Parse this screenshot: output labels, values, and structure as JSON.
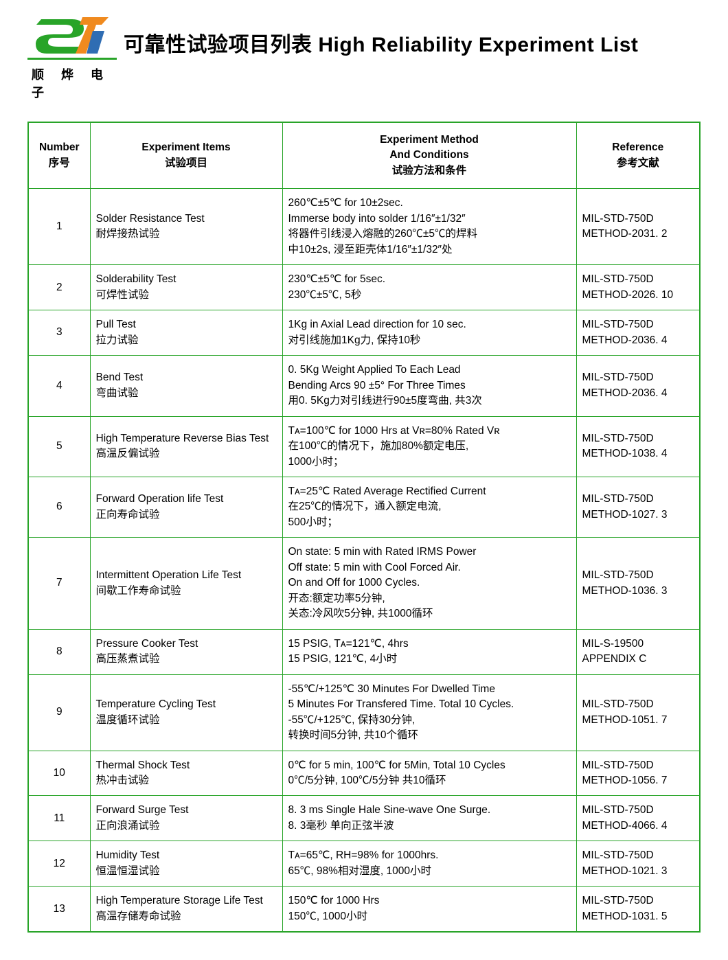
{
  "logo": {
    "company_cn": "顺 烨 电 子"
  },
  "page_title": "可靠性试验项目列表  High Reliability Experiment List",
  "colors": {
    "border": "#28a428",
    "text": "#000000",
    "bg": "#ffffff",
    "logo_orange": "#f08a1e",
    "logo_blue": "#2f6db3"
  },
  "headers": {
    "number_en": "Number",
    "number_cn": "序号",
    "items_en": "Experiment Items",
    "items_cn": "试验项目",
    "method_en": "Experiment Method",
    "method_en2": "And Conditions",
    "method_cn": "试验方法和条件",
    "ref_en": "Reference",
    "ref_cn": "参考文献"
  },
  "rows": [
    {
      "num": "1",
      "item_en": "Solder  Resistance Test",
      "item_cn": "耐焊接热试验",
      "method": "260℃±5℃ for 10±2sec.\nImmerse body into solder 1/16″±1/32″\n将器件引线浸入熔融的260℃±5℃的焊料\n中10±2s, 浸至距壳体1/16″±1/32″处",
      "ref": "MIL-STD-750D\nMETHOD-2031. 2"
    },
    {
      "num": "2",
      "item_en": "Solderability Test",
      "item_cn": "可焊性试验",
      "method": "230℃±5℃ for 5sec.\n230℃±5℃, 5秒",
      "ref": "MIL-STD-750D\nMETHOD-2026. 10"
    },
    {
      "num": "3",
      "item_en": "Pull Test",
      "item_cn": "拉力试验",
      "method": "1Kg in Axial Lead direction for 10 sec.\n对引线施加1Kg力, 保持10秒",
      "ref": "MIL-STD-750D\nMETHOD-2036. 4"
    },
    {
      "num": "4",
      "item_en": "Bend  Test",
      "item_cn": "弯曲试验",
      "method": "0. 5Kg Weight Applied To Each Lead\nBending Arcs 90 ±5°  For Three Times\n用0. 5Kg力对引线进行90±5度弯曲, 共3次",
      "ref": "MIL-STD-750D\nMETHOD-2036. 4"
    },
    {
      "num": "5",
      "item_en": "High Temperature Reverse Bias Test",
      "item_cn": "高温反偏试验",
      "method": "Tᴀ=100℃ for 1000 Hrs at Vʀ=80% Rated Vʀ\n在100℃的情况下，施加80%额定电压,\n1000小时；",
      "ref": "MIL-STD-750D\nMETHOD-1038. 4"
    },
    {
      "num": "6",
      "item_en": "Forward Operation life Test",
      "item_cn": "正向寿命试验",
      "method": "Tᴀ=25℃ Rated Average Rectified Current\n在25℃的情况下，通入额定电流,\n500小时；",
      "ref": "MIL-STD-750D\nMETHOD-1027. 3"
    },
    {
      "num": "7",
      "item_en": "Intermittent  Operation Life Test",
      "item_cn": "间歇工作寿命试验",
      "method": "On state: 5 min with Rated IRMS Power\nOff state: 5 min with Cool Forced Air.\nOn and Off for 1000 Cycles.\n开态:额定功率5分钟,\n关态:冷风吹5分钟, 共1000循环",
      "ref": "MIL-STD-750D\nMETHOD-1036. 3"
    },
    {
      "num": "8",
      "item_en": "Pressure  Cooker Test",
      "item_cn": "高压蒸煮试验",
      "method": "15 PSIG, Tᴀ=121℃, 4hrs\n15 PSIG, 121℃, 4小时",
      "ref": "MIL-S-19500\nAPPENDIX C"
    },
    {
      "num": "9",
      "item_en": "Temperature Cycling Test",
      "item_cn": "温度循环试验",
      "method": "-55℃/+125℃ 30 Minutes For Dwelled Time\n5 Minutes For Transfered Time.  Total 10 Cycles.\n-55℃/+125℃, 保持30分钟,\n转换时间5分钟, 共10个循环",
      "ref": "MIL-STD-750D\nMETHOD-1051. 7"
    },
    {
      "num": "10",
      "item_en": "Thermal  Shock Test",
      "item_cn": "热冲击试验",
      "method": "0℃ for 5 min, 100℃ for 5Min, Total 10 Cycles\n0℃/5分钟, 100℃/5分钟  共10循环",
      "ref": "MIL-STD-750D\nMETHOD-1056. 7"
    },
    {
      "num": "11",
      "item_en": "Forward Surge Test",
      "item_cn": "正向浪涌试验",
      "method": "8. 3 ms Single Hale Sine-wave One Surge.\n8. 3毫秒 单向正弦半波",
      "ref": "MIL-STD-750D\nMETHOD-4066. 4"
    },
    {
      "num": "12",
      "item_en": "Humidity Test",
      "item_cn": "恒温恒湿试验",
      "method": "Tᴀ=65℃, RH=98% for 1000hrs.\n65℃, 98%相对湿度, 1000小时",
      "ref": "MIL-STD-750D\nMETHOD-1021. 3"
    },
    {
      "num": "13",
      "item_en": "High Temperature Storage Life Test",
      "item_cn": "高温存储寿命试验",
      "method": "150℃ for 1000 Hrs\n150℃, 1000小时",
      "ref": "MIL-STD-750D\nMETHOD-1031. 5"
    }
  ]
}
